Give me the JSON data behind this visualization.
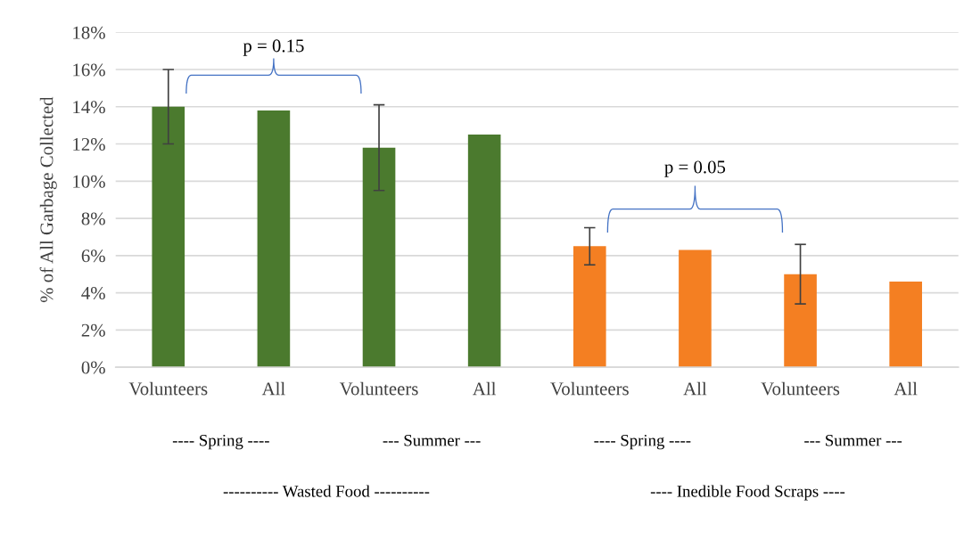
{
  "chart_data": {
    "type": "bar",
    "ylabel": "% of All Garbage Collected",
    "categories": [
      "Volunteers",
      "All",
      "Volunteers",
      "All",
      "Volunteers",
      "All",
      "Volunteers",
      "All"
    ],
    "values": [
      14.0,
      13.8,
      11.8,
      12.5,
      6.5,
      6.3,
      5.0,
      4.6
    ],
    "colors": [
      "#4b7a2e",
      "#4b7a2e",
      "#4b7a2e",
      "#4b7a2e",
      "#f47f22",
      "#f47f22",
      "#f47f22",
      "#f47f22"
    ],
    "errors": [
      2.0,
      null,
      2.3,
      null,
      1.0,
      null,
      1.6,
      null
    ],
    "ylim": [
      0,
      18
    ],
    "yticks": [
      {
        "value": 0,
        "label": "0%"
      },
      {
        "value": 2,
        "label": "2%"
      },
      {
        "value": 4,
        "label": "4%"
      },
      {
        "value": 6,
        "label": "6%"
      },
      {
        "value": 8,
        "label": "8%"
      },
      {
        "value": 10,
        "label": "10%"
      },
      {
        "value": 12,
        "label": "12%"
      },
      {
        "value": 14,
        "label": "14%"
      },
      {
        "value": 16,
        "label": "16%"
      },
      {
        "value": 18,
        "label": "18%"
      }
    ],
    "grid": "y",
    "annotations": [
      "p = 0.15",
      "p = 0.05",
      "---- Spring ----",
      "--- Summer ---",
      "---- Spring ----",
      "--- Summer ---",
      "---------- Wasted Food ----------",
      "---- Inedible Food Scraps ----"
    ]
  }
}
